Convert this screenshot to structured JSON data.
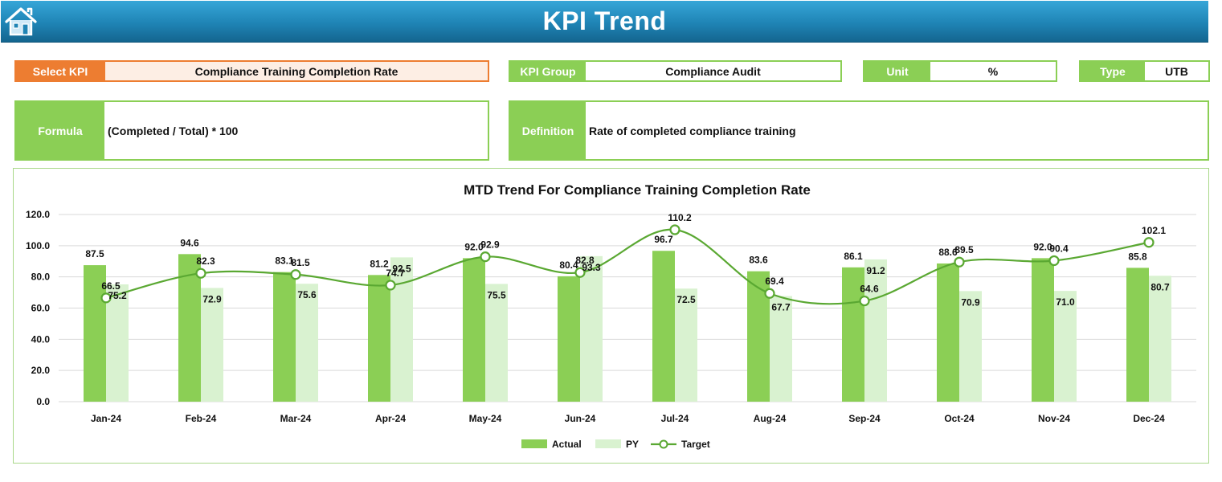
{
  "header": {
    "title": "KPI Trend",
    "home_icon": "home-icon"
  },
  "selectors": {
    "kpi": {
      "label": "Select KPI",
      "value": "Compliance Training Completion Rate"
    },
    "group": {
      "label": "KPI Group",
      "value": "Compliance Audit"
    },
    "unit": {
      "label": "Unit",
      "value": "%"
    },
    "type": {
      "label": "Type",
      "value": "UTB"
    }
  },
  "formula": {
    "label": "Formula",
    "value": "(Completed / Total) * 100"
  },
  "definition": {
    "label": "Definition",
    "value": "Rate of completed compliance training"
  },
  "colors": {
    "actual": "#8bcf55",
    "py": "#d9f2d0",
    "target": "#5aa832",
    "accent_orange": "#ed7d31",
    "header": "#1f84b5"
  },
  "chart_data": {
    "type": "bar",
    "title": "MTD Trend For Compliance Training Completion Rate",
    "categories": [
      "Jan-24",
      "Feb-24",
      "Mar-24",
      "Apr-24",
      "May-24",
      "Jun-24",
      "Jul-24",
      "Aug-24",
      "Sep-24",
      "Oct-24",
      "Nov-24",
      "Dec-24"
    ],
    "series": [
      {
        "name": "Actual",
        "type": "bar",
        "values": [
          87.5,
          94.6,
          83.1,
          81.2,
          92.0,
          80.4,
          96.7,
          83.6,
          86.1,
          88.6,
          92.0,
          85.8
        ]
      },
      {
        "name": "PY",
        "type": "bar",
        "values": [
          75.2,
          72.9,
          75.6,
          92.5,
          75.5,
          93.3,
          72.5,
          67.7,
          91.2,
          70.9,
          71.0,
          80.7
        ]
      },
      {
        "name": "Target",
        "type": "line",
        "values": [
          66.5,
          82.3,
          81.5,
          74.7,
          92.9,
          82.8,
          110.2,
          69.4,
          64.6,
          89.5,
          90.4,
          102.1
        ]
      }
    ],
    "yticks": [
      "0.0",
      "20.0",
      "40.0",
      "60.0",
      "80.0",
      "100.0",
      "120.0"
    ],
    "ylim": [
      0,
      120
    ],
    "grid": true,
    "legend": "bottom"
  }
}
